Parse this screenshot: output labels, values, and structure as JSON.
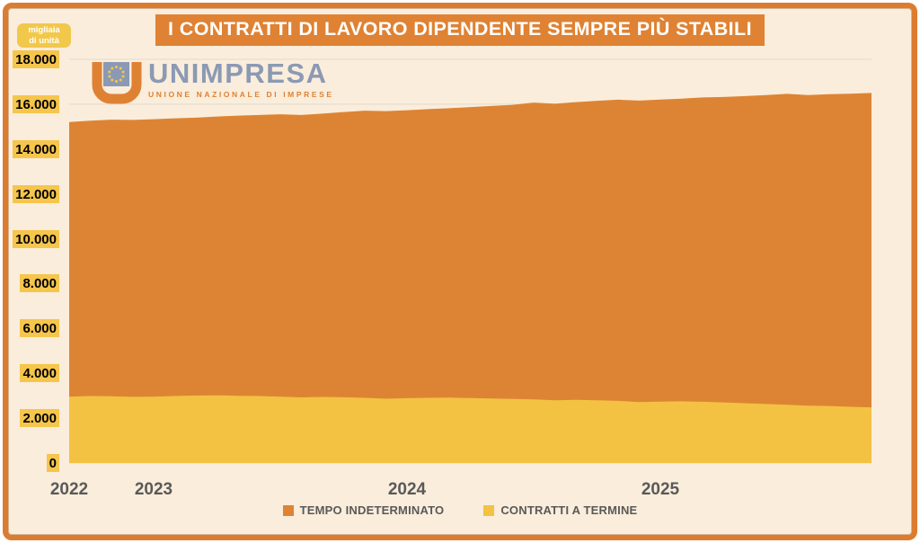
{
  "title": "I CONTRATTI DI LAVORO DIPENDENTE SEMPRE PIÙ STABILI",
  "unit_badge": {
    "line1": "migliaia",
    "line2": "di unità"
  },
  "logo": {
    "name": "UNIMPRESA",
    "tagline": "UNIONE NAZIONALE DI IMPRESE"
  },
  "colors": {
    "background_cream": "#FAEDDB",
    "frame_border": "#DC7C2F",
    "title_bar": "#DF8233",
    "area_orange": "#DD8434",
    "area_yellow": "#F3C243",
    "ylabel_highlight": "#F6C54B",
    "axis_text_gray": "#595959",
    "gridline": "#E9E1D4",
    "logo_blue": "#8B99B4",
    "logo_orange": "#DF8133",
    "eu_star_yellow": "#F2C84B"
  },
  "chart_data": {
    "type": "area",
    "title": "I CONTRATTI DI LAVORO DIPENDENTE SEMPRE PIÙ STABILI",
    "unit_label": "migliaia di unità",
    "grid": "horizontal",
    "legend_position": "bottom",
    "ylim": [
      0,
      18000
    ],
    "ytick_step": 2000,
    "yticks": [
      {
        "value": 0,
        "label": "0"
      },
      {
        "value": 2000,
        "label": "2.000"
      },
      {
        "value": 4000,
        "label": "4.000"
      },
      {
        "value": 6000,
        "label": "6.000"
      },
      {
        "value": 8000,
        "label": "8.000"
      },
      {
        "value": 10000,
        "label": "10.000"
      },
      {
        "value": 12000,
        "label": "12.000"
      },
      {
        "value": 14000,
        "label": "14.000"
      },
      {
        "value": 16000,
        "label": "16.000"
      },
      {
        "value": 18000,
        "label": "18.000"
      }
    ],
    "x": [
      "2022-09",
      "2022-10",
      "2022-11",
      "2022-12",
      "2023-01",
      "2023-02",
      "2023-03",
      "2023-04",
      "2023-05",
      "2023-06",
      "2023-07",
      "2023-08",
      "2023-09",
      "2023-10",
      "2023-11",
      "2023-12",
      "2024-01",
      "2024-02",
      "2024-03",
      "2024-04",
      "2024-05",
      "2024-06",
      "2024-07",
      "2024-08",
      "2024-09",
      "2024-10",
      "2024-11",
      "2024-12",
      "2025-01",
      "2025-02",
      "2025-03",
      "2025-04",
      "2025-05",
      "2025-06",
      "2025-07",
      "2025-08",
      "2025-09",
      "2025-10",
      "2025-11"
    ],
    "x_axis_labels": [
      {
        "text": "2022",
        "index": 0
      },
      {
        "text": "2023",
        "index": 4
      },
      {
        "text": "2024",
        "index": 16
      },
      {
        "text": "2025",
        "index": 28
      }
    ],
    "series": [
      {
        "name": "TEMPO INDETERMINATO",
        "color": "#DD8434",
        "values": [
          15200,
          15260,
          15310,
          15300,
          15330,
          15370,
          15400,
          15450,
          15490,
          15520,
          15550,
          15520,
          15580,
          15650,
          15710,
          15690,
          15730,
          15780,
          15820,
          15870,
          15920,
          15970,
          16070,
          16020,
          16090,
          16150,
          16200,
          16160,
          16210,
          16250,
          16300,
          16320,
          16360,
          16410,
          16460,
          16410,
          16450,
          16470,
          16500
        ]
      },
      {
        "name": "CONTRATTI A TERMINE",
        "color": "#F3C243",
        "values": [
          2960,
          2985,
          2975,
          2950,
          2960,
          2985,
          3005,
          3015,
          3000,
          2985,
          2960,
          2925,
          2945,
          2930,
          2905,
          2865,
          2890,
          2905,
          2915,
          2895,
          2875,
          2855,
          2835,
          2795,
          2815,
          2795,
          2770,
          2715,
          2740,
          2750,
          2730,
          2700,
          2665,
          2630,
          2595,
          2555,
          2540,
          2505,
          2480
        ]
      }
    ]
  }
}
